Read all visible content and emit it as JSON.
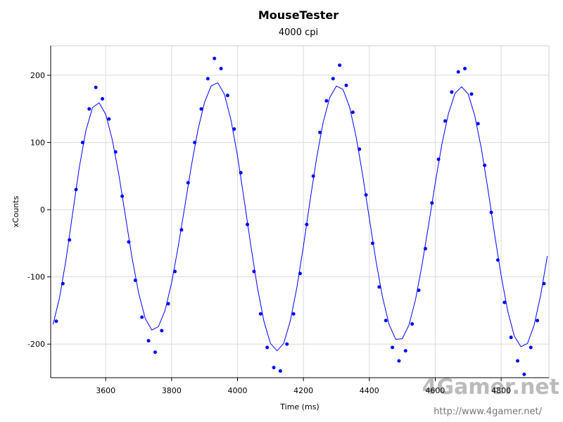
{
  "chart_data": {
    "type": "scatter",
    "title": "MouseTester",
    "subtitle": "4000 cpi",
    "x_label": "Time (ms)",
    "y_label": "xCounts",
    "xlim": [
      3433,
      4945
    ],
    "ylim": [
      -250,
      244
    ],
    "xticks": [
      3600,
      3800,
      4000,
      4200,
      4400,
      4600,
      4800
    ],
    "yticks": [
      -200,
      -100,
      0,
      100,
      200
    ],
    "grid": true,
    "series": [
      {
        "mode": "line",
        "color": "#0000ff",
        "x": [
          3440,
          3460,
          3480,
          3500,
          3520,
          3540,
          3560,
          3580,
          3600,
          3620,
          3640,
          3660,
          3680,
          3700,
          3720,
          3740,
          3760,
          3780,
          3800,
          3820,
          3840,
          3860,
          3880,
          3900,
          3920,
          3940,
          3960,
          3980,
          4000,
          4020,
          4040,
          4060,
          4080,
          4100,
          4120,
          4140,
          4160,
          4180,
          4200,
          4220,
          4240,
          4260,
          4280,
          4300,
          4320,
          4340,
          4360,
          4380,
          4400,
          4420,
          4440,
          4460,
          4480,
          4500,
          4520,
          4540,
          4560,
          4580,
          4600,
          4620,
          4640,
          4660,
          4680,
          4700,
          4720,
          4740,
          4760,
          4780,
          4800,
          4820,
          4840,
          4860,
          4880,
          4900,
          4920,
          4940
        ],
        "values": [
          -171,
          -131,
          -73,
          -4,
          63,
          118,
          152,
          159,
          142,
          104,
          52,
          -10,
          -72,
          -124,
          -162,
          -179,
          -174,
          -150,
          -109,
          -55,
          5,
          65,
          119,
          160,
          184,
          189,
          172,
          134,
          80,
          15,
          -52,
          -115,
          -166,
          -199,
          -210,
          -199,
          -166,
          -116,
          -54,
          13,
          77,
          130,
          167,
          184,
          179,
          153,
          108,
          51,
          -13,
          -76,
          -130,
          -171,
          -193,
          -192,
          -172,
          -134,
          -82,
          -22,
          40,
          97,
          143,
          173,
          183,
          172,
          140,
          91,
          30,
          -36,
          -98,
          -151,
          -188,
          -204,
          -199,
          -172,
          -127,
          -69
        ]
      },
      {
        "mode": "markers",
        "color": "#0000ff",
        "x": [
          3450,
          3470,
          3490,
          3510,
          3530,
          3550,
          3570,
          3590,
          3610,
          3630,
          3650,
          3670,
          3690,
          3710,
          3730,
          3750,
          3770,
          3790,
          3810,
          3830,
          3850,
          3870,
          3890,
          3910,
          3930,
          3950,
          3970,
          3990,
          4010,
          4030,
          4050,
          4070,
          4090,
          4110,
          4130,
          4150,
          4170,
          4190,
          4210,
          4230,
          4250,
          4270,
          4290,
          4310,
          4330,
          4350,
          4370,
          4390,
          4410,
          4430,
          4450,
          4470,
          4490,
          4510,
          4530,
          4550,
          4570,
          4590,
          4610,
          4630,
          4650,
          4670,
          4690,
          4710,
          4730,
          4750,
          4770,
          4790,
          4810,
          4830,
          4850,
          4870,
          4890,
          4910,
          4930
        ],
        "values": [
          -166,
          -110,
          -45,
          30,
          100,
          150,
          182,
          165,
          135,
          86,
          20,
          -48,
          -105,
          -160,
          -195,
          -212,
          -180,
          -140,
          -92,
          -30,
          40,
          100,
          150,
          195,
          225,
          210,
          170,
          120,
          55,
          -22,
          -92,
          -155,
          -205,
          -235,
          -240,
          -200,
          -155,
          -95,
          -22,
          50,
          115,
          162,
          195,
          215,
          185,
          145,
          90,
          22,
          -50,
          -115,
          -165,
          -205,
          -225,
          -210,
          -170,
          -120,
          -58,
          10,
          75,
          132,
          175,
          205,
          210,
          172,
          128,
          66,
          -4,
          -75,
          -138,
          -190,
          -225,
          -245,
          -205,
          -165,
          -110
        ]
      }
    ],
    "watermark": "4Gamer.net",
    "watermark_url": "http://www.4gamer.net/"
  }
}
